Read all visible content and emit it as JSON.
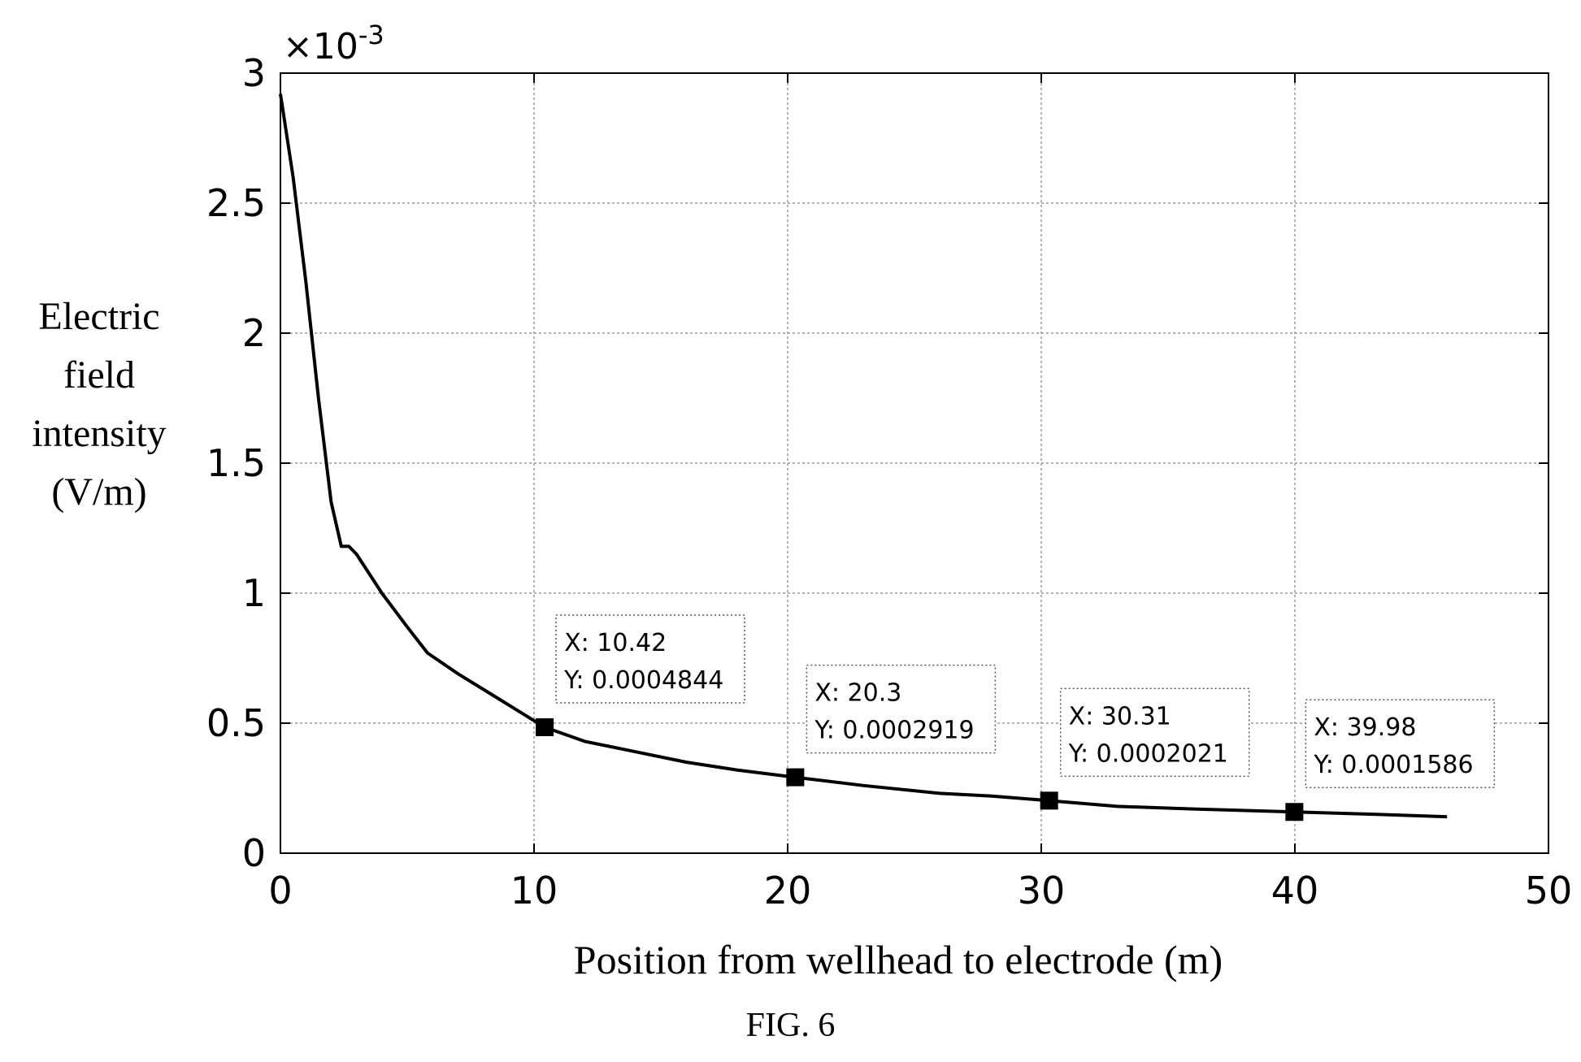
{
  "figure": {
    "caption": "FIG. 6"
  },
  "chart_data": {
    "type": "line",
    "xlabel": "Position from wellhead to electrode (m)",
    "ylabel_lines": [
      "Electric",
      "field",
      "intensity",
      "(V/m)"
    ],
    "y_exponent_label": "×10",
    "y_exponent_power": "-3",
    "xlim": [
      0,
      50
    ],
    "ylim": [
      0,
      0.003
    ],
    "x_ticks": [
      0,
      10,
      20,
      30,
      40,
      50
    ],
    "x_tick_labels": [
      "0",
      "10",
      "20",
      "30",
      "40",
      "50"
    ],
    "y_ticks": [
      0,
      0.0005,
      0.001,
      0.0015,
      0.002,
      0.0025,
      0.003
    ],
    "y_tick_labels": [
      "0",
      "0.5",
      "1",
      "1.5",
      "2",
      "2.5",
      "3"
    ],
    "grid": true,
    "series": [
      {
        "x": [
          0,
          0.5,
          1.0,
          1.5,
          2.0,
          2.4,
          2.7,
          3.0,
          4.0,
          5.0,
          5.8,
          7.0,
          8.5,
          10.42,
          12.0,
          14.0,
          16.0,
          18.0,
          20.3,
          23.0,
          26.0,
          28.0,
          30.31,
          33.0,
          36.0,
          39.98,
          43.0,
          46.0
        ],
        "y": [
          0.00292,
          0.0026,
          0.0022,
          0.00175,
          0.00135,
          0.00118,
          0.00118,
          0.00115,
          0.001,
          0.00087,
          0.00077,
          0.00069,
          0.0006,
          0.0004844,
          0.00043,
          0.00039,
          0.00035,
          0.00032,
          0.0002919,
          0.00026,
          0.00023,
          0.00022,
          0.0002021,
          0.00018,
          0.00017,
          0.0001586,
          0.00015,
          0.00014
        ]
      }
    ],
    "datatips": [
      {
        "x": 10.42,
        "y": 0.0004844,
        "x_text": "X: 10.42",
        "y_text": "Y: 0.0004844"
      },
      {
        "x": 20.3,
        "y": 0.0002919,
        "x_text": "X: 20.3",
        "y_text": "Y: 0.0002919"
      },
      {
        "x": 30.31,
        "y": 0.0002021,
        "x_text": "X: 30.31",
        "y_text": "Y: 0.0002021"
      },
      {
        "x": 39.98,
        "y": 0.0001586,
        "x_text": "X: 39.98",
        "y_text": "Y: 0.0001586"
      }
    ]
  }
}
